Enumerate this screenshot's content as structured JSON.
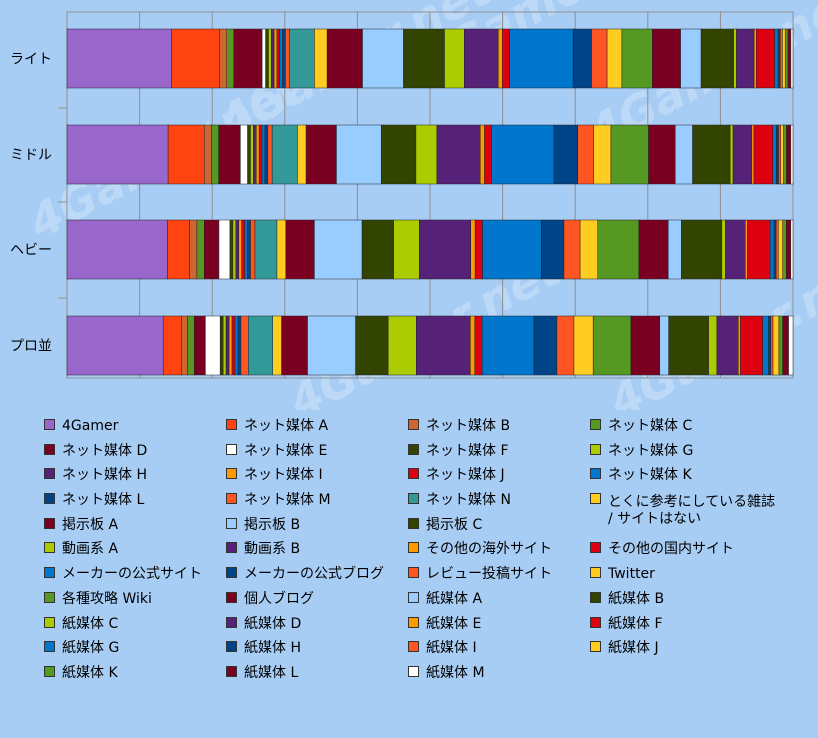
{
  "chart_data": {
    "type": "bar",
    "orientation": "horizontal",
    "stacked": "percent",
    "categories": [
      "ライト",
      "ミドル",
      "ヘビー",
      "プロ並"
    ],
    "xlim": [
      0,
      100
    ],
    "grid": true,
    "legend_position": "bottom",
    "colors": [
      "#9966cc",
      "#ff4411",
      "#cc6633",
      "#559922",
      "#7a0022",
      "#ffffff",
      "#334400",
      "#aacc00",
      "#552277",
      "#ff9900",
      "#dd0011",
      "#0077cc",
      "#004488",
      "#ff5522",
      "#339999",
      "#ffcc22",
      "#7a0022",
      "#99ccff",
      "#334400",
      "#aacc00",
      "#552277",
      "#ff9900",
      "#dd0011",
      "#0077cc",
      "#004488",
      "#ff5522",
      "#ffcc22",
      "#559922",
      "#7a0022",
      "#99ccff",
      "#334400",
      "#aacc00",
      "#552277",
      "#ff9900",
      "#dd0011",
      "#0077cc",
      "#004488",
      "#ff5522",
      "#ffcc22",
      "#559922",
      "#7a0022",
      "#ffffff"
    ],
    "series": [
      {
        "name": "4Gamer",
        "values": [
          14.8,
          14.0,
          13.7,
          13.0
        ]
      },
      {
        "name": "ネット媒体 A",
        "values": [
          6.8,
          5.0,
          3.0,
          2.5
        ]
      },
      {
        "name": "ネット媒体 B",
        "values": [
          1.0,
          1.0,
          1.0,
          0.8
        ]
      },
      {
        "name": "ネット媒体 C",
        "values": [
          1.0,
          1.0,
          1.0,
          0.9
        ]
      },
      {
        "name": "ネット媒体 D",
        "values": [
          4.0,
          3.0,
          2.0,
          1.5
        ]
      },
      {
        "name": "ネット媒体 E",
        "values": [
          0.5,
          1.0,
          1.5,
          2.0
        ]
      },
      {
        "name": "ネット媒体 F",
        "values": [
          0.4,
          0.4,
          0.4,
          0.4
        ]
      },
      {
        "name": "ネット媒体 G",
        "values": [
          0.4,
          0.4,
          0.4,
          0.4
        ]
      },
      {
        "name": "ネット媒体 H",
        "values": [
          0.4,
          0.4,
          0.4,
          0.4
        ]
      },
      {
        "name": "ネット媒体 I",
        "values": [
          0.4,
          0.4,
          0.4,
          0.4
        ]
      },
      {
        "name": "ネット媒体 J",
        "values": [
          0.4,
          0.4,
          0.4,
          0.4
        ]
      },
      {
        "name": "ネット媒体 K",
        "values": [
          0.4,
          0.4,
          0.4,
          0.4
        ]
      },
      {
        "name": "ネット媒体 L",
        "values": [
          0.4,
          0.4,
          0.4,
          0.4
        ]
      },
      {
        "name": "ネット媒体 M",
        "values": [
          0.6,
          0.6,
          0.6,
          1.0
        ]
      },
      {
        "name": "ネット媒体 N",
        "values": [
          3.5,
          3.5,
          3.0,
          3.3
        ]
      },
      {
        "name": "とくに参考にしている雑誌 / サイトはない",
        "values": [
          1.8,
          1.2,
          1.2,
          1.2
        ]
      },
      {
        "name": "掲示板 A",
        "values": [
          5.0,
          4.2,
          3.9,
          3.5
        ]
      },
      {
        "name": "掲示板 B",
        "values": [
          5.8,
          6.2,
          6.5,
          6.5
        ]
      },
      {
        "name": "掲示板 C",
        "values": [
          5.8,
          4.8,
          4.3,
          4.4
        ]
      },
      {
        "name": "動画系 A",
        "values": [
          2.8,
          2.9,
          3.5,
          3.8
        ]
      },
      {
        "name": "動画系 B",
        "values": [
          4.8,
          6.0,
          7.0,
          7.3
        ]
      },
      {
        "name": "その他の海外サイト",
        "values": [
          0.6,
          0.6,
          0.6,
          0.6
        ]
      },
      {
        "name": "その他の国内サイト",
        "values": [
          1.0,
          1.0,
          1.0,
          1.0
        ]
      },
      {
        "name": "メーカーの公式サイト",
        "values": [
          9.0,
          8.6,
          8.0,
          7.0
        ]
      },
      {
        "name": "メーカーの公式ブログ",
        "values": [
          2.6,
          3.3,
          3.1,
          3.1
        ]
      },
      {
        "name": "レビュー投稿サイト",
        "values": [
          2.2,
          2.2,
          2.2,
          2.3
        ]
      },
      {
        "name": "Twitter",
        "values": [
          2.1,
          2.4,
          2.4,
          2.6
        ]
      },
      {
        "name": "各種攻略 Wiki",
        "values": [
          4.3,
          5.2,
          5.6,
          5.1
        ]
      },
      {
        "name": "個人ブログ",
        "values": [
          4.0,
          3.7,
          4.0,
          3.9
        ]
      },
      {
        "name": "紙媒体 A",
        "values": [
          2.9,
          2.4,
          1.8,
          1.2
        ]
      },
      {
        "name": "紙媒体 B",
        "values": [
          4.6,
          5.2,
          5.5,
          5.4
        ]
      },
      {
        "name": "紙媒体 C",
        "values": [
          0.4,
          0.4,
          0.5,
          1.1
        ]
      },
      {
        "name": "紙媒体 D",
        "values": [
          2.5,
          2.6,
          2.7,
          2.9
        ]
      },
      {
        "name": "紙媒体 E",
        "values": [
          0.3,
          0.3,
          0.3,
          0.3
        ]
      },
      {
        "name": "紙媒体 F",
        "values": [
          2.6,
          2.6,
          3.1,
          3.0
        ]
      },
      {
        "name": "紙媒体 G",
        "values": [
          0.5,
          0.5,
          0.5,
          0.8
        ]
      },
      {
        "name": "紙媒体 H",
        "values": [
          0.3,
          0.3,
          0.3,
          0.3
        ]
      },
      {
        "name": "紙媒体 I",
        "values": [
          0.3,
          0.3,
          0.3,
          0.3
        ]
      },
      {
        "name": "紙媒体 J",
        "values": [
          0.4,
          0.4,
          0.6,
          0.8
        ]
      },
      {
        "name": "紙媒体 K",
        "values": [
          0.4,
          0.4,
          0.5,
          0.5
        ]
      },
      {
        "name": "紙媒体 L",
        "values": [
          0.4,
          0.6,
          0.6,
          0.8
        ]
      },
      {
        "name": "紙媒体 M",
        "values": [
          0.3,
          0.3,
          0.3,
          0.6
        ]
      }
    ]
  },
  "watermark": "4Gamer.net"
}
